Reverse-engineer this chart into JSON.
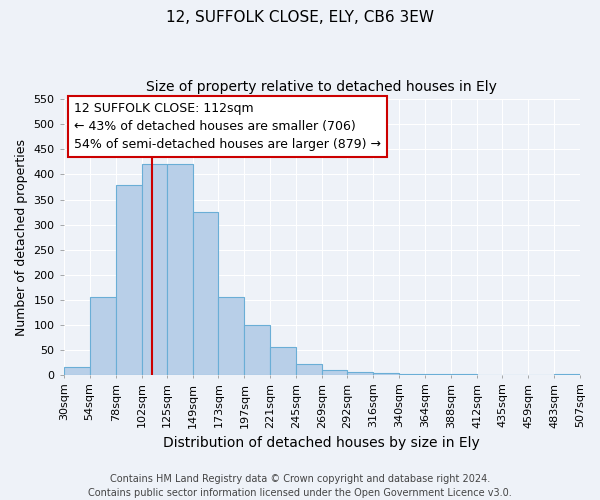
{
  "title": "12, SUFFOLK CLOSE, ELY, CB6 3EW",
  "subtitle": "Size of property relative to detached houses in Ely",
  "xlabel": "Distribution of detached houses by size in Ely",
  "ylabel": "Number of detached properties",
  "bin_labels": [
    "30sqm",
    "54sqm",
    "78sqm",
    "102sqm",
    "125sqm",
    "149sqm",
    "173sqm",
    "197sqm",
    "221sqm",
    "245sqm",
    "269sqm",
    "292sqm",
    "316sqm",
    "340sqm",
    "364sqm",
    "388sqm",
    "412sqm",
    "435sqm",
    "459sqm",
    "483sqm",
    "507sqm"
  ],
  "bin_edges": [
    30,
    54,
    78,
    102,
    125,
    149,
    173,
    197,
    221,
    245,
    269,
    292,
    316,
    340,
    364,
    388,
    412,
    435,
    459,
    483,
    507
  ],
  "bar_values": [
    15,
    155,
    380,
    420,
    420,
    325,
    155,
    100,
    55,
    22,
    10,
    5,
    3,
    2,
    2,
    2,
    0,
    0,
    0,
    2
  ],
  "bar_color": "#b8cfe8",
  "bar_edge_color": "#6aaed6",
  "ylim": [
    0,
    550
  ],
  "yticks": [
    0,
    50,
    100,
    150,
    200,
    250,
    300,
    350,
    400,
    450,
    500,
    550
  ],
  "vline_x": 112,
  "vline_color": "#cc0000",
  "annotation_line1": "12 SUFFOLK CLOSE: 112sqm",
  "annotation_line2": "← 43% of detached houses are smaller (706)",
  "annotation_line3": "54% of semi-detached houses are larger (879) →",
  "footer_text": "Contains HM Land Registry data © Crown copyright and database right 2024.\nContains public sector information licensed under the Open Government Licence v3.0.",
  "background_color": "#eef2f8",
  "grid_color": "#ffffff",
  "title_fontsize": 11,
  "subtitle_fontsize": 10,
  "xlabel_fontsize": 10,
  "ylabel_fontsize": 9,
  "tick_fontsize": 8,
  "annotation_fontsize": 9,
  "footer_fontsize": 7
}
